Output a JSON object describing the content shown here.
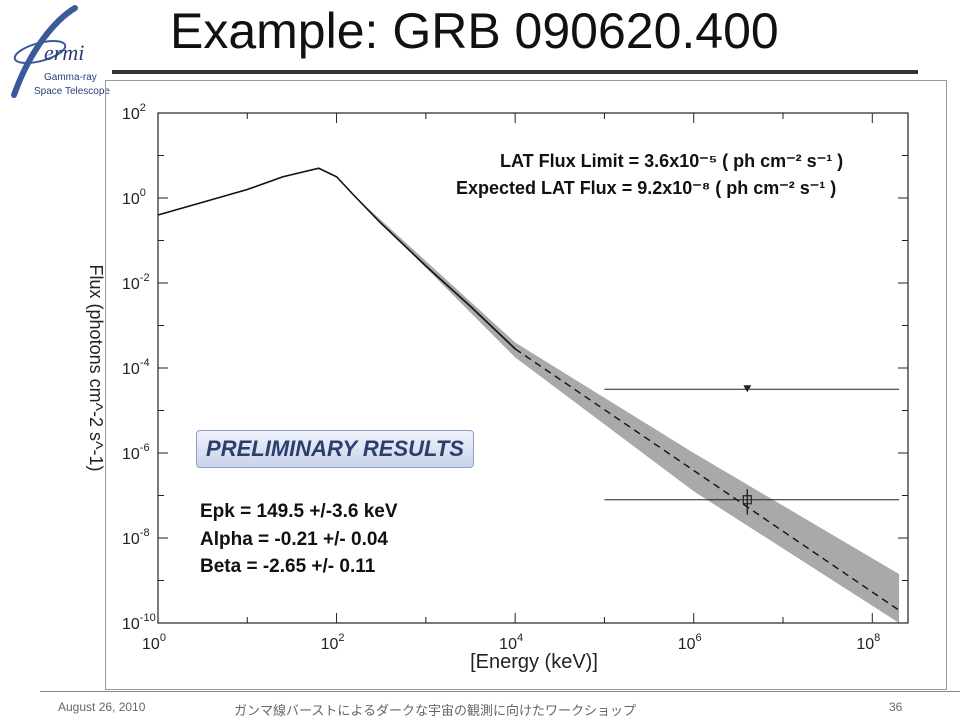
{
  "slide": {
    "title": "Example: GRB 090620.400",
    "footer_date": "August 26, 2010",
    "footer_workshop": "ガンマ線バーストによるダークな宇宙の観測に向けたワークショップ",
    "page_number": "36"
  },
  "logo": {
    "name": "ermi",
    "line1": "Gamma-ray",
    "line2": "Space Telescope",
    "icon": "fermi-logo"
  },
  "chart_data": {
    "type": "line",
    "xlabel": "[Energy (keV)]",
    "ylabel": "Flux (photons cm^-2 s^-1)",
    "xscale": "log",
    "yscale": "log",
    "xlim_exp": [
      0,
      8.4
    ],
    "ylim_exp": [
      -10,
      2
    ],
    "x_ticks": [
      {
        "base": "10",
        "exp": "0"
      },
      {
        "base": "10",
        "exp": "2"
      },
      {
        "base": "10",
        "exp": "4"
      },
      {
        "base": "10",
        "exp": "6"
      },
      {
        "base": "10",
        "exp": "8"
      }
    ],
    "y_ticks": [
      {
        "base": "10",
        "exp": "-10"
      },
      {
        "base": "10",
        "exp": "-8"
      },
      {
        "base": "10",
        "exp": "-6"
      },
      {
        "base": "10",
        "exp": "-4"
      },
      {
        "base": "10",
        "exp": "-2"
      },
      {
        "base": "10",
        "exp": "0"
      },
      {
        "base": "10",
        "exp": "2"
      }
    ],
    "model_curve": {
      "log_x": [
        0,
        0.5,
        1.0,
        1.4,
        1.8,
        2.0,
        2.2,
        2.5,
        3.0,
        3.5,
        4.0
      ],
      "log_y": [
        -0.4,
        -0.1,
        0.2,
        0.5,
        0.7,
        0.5,
        0.05,
        -0.6,
        -1.6,
        -2.55,
        -3.55
      ]
    },
    "extrapolation": {
      "log_x": [
        4.0,
        8.3
      ],
      "log_y": [
        -3.55,
        -9.7
      ]
    },
    "uncertainty_band": {
      "log_x": [
        2.2,
        4.0,
        6.0,
        8.3
      ],
      "log_y_upper": [
        0.05,
        -3.4,
        -6.0,
        -8.85
      ],
      "log_y_lower": [
        0.05,
        -3.75,
        -6.9,
        -10.0
      ]
    },
    "upper_limit": {
      "log_x": 6.6,
      "log_y": -4.5,
      "xerr_log": [
        5.0,
        8.3
      ]
    },
    "measured_point": {
      "log_x": 6.6,
      "log_y": -7.1,
      "xerr_log": [
        5.0,
        8.3
      ],
      "yerr_log": [
        -7.45,
        -6.85
      ]
    },
    "annotations": {
      "lat_flux_limit": "LAT Flux Limit = 3.6x10⁻⁵ ( ph cm⁻² s⁻¹ )",
      "expected_lat_flux": "Expected LAT Flux = 9.2x10⁻⁸ ( ph cm⁻² s⁻¹ )",
      "preliminary": "PRELIMINARY RESULTS",
      "epk": "Epk = 149.5 +/-3.6 keV",
      "alpha": "Alpha = -0.21 +/- 0.04",
      "beta": "Beta = -2.65 +/- 0.11"
    },
    "colors": {
      "band": "#a9a9a9",
      "line": "#111111"
    }
  }
}
